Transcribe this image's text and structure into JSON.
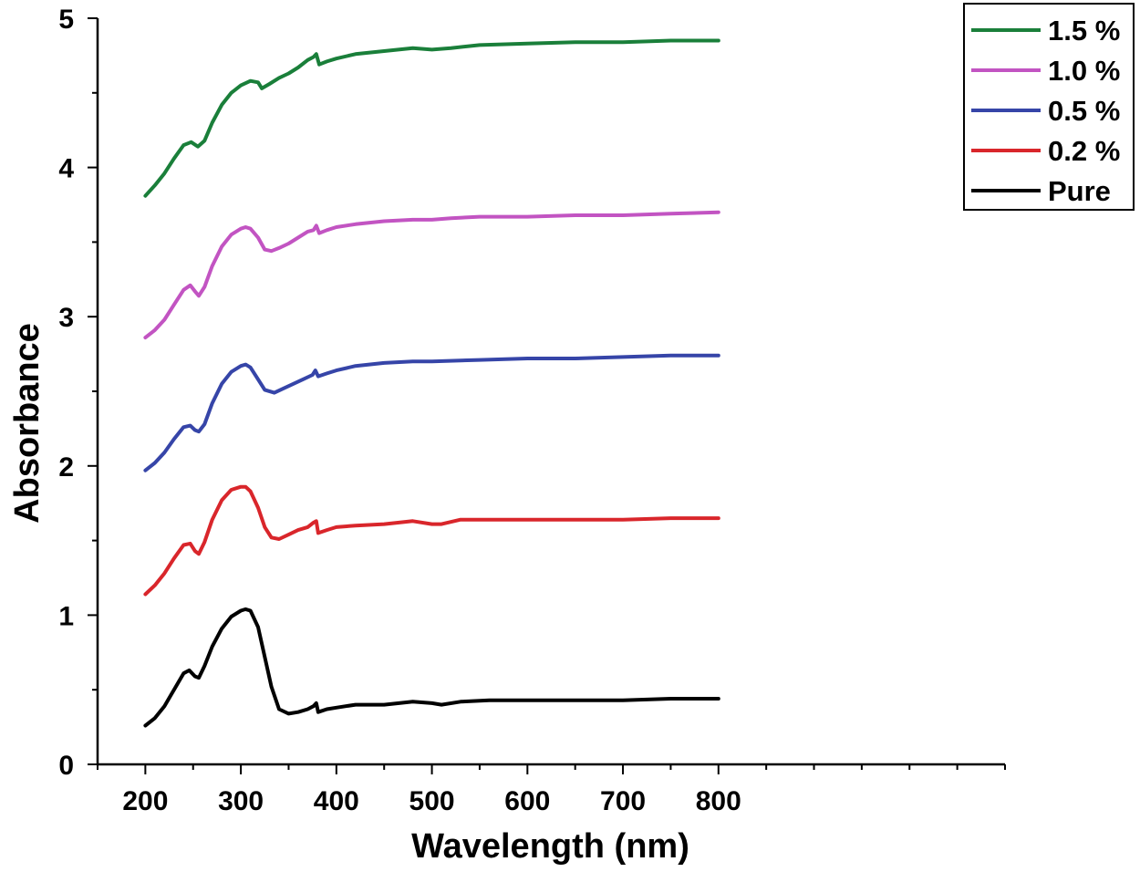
{
  "chart_data": {
    "type": "line",
    "title": "",
    "xlabel": "Wavelength (nm)",
    "ylabel": "Absorbance",
    "xlim": [
      150,
      1100
    ],
    "ylim": [
      0,
      5
    ],
    "xticks": [
      200,
      300,
      400,
      500,
      600,
      700,
      800
    ],
    "yticks": [
      0,
      1,
      2,
      3,
      4,
      5
    ],
    "xtick_labels": [
      "200",
      "300",
      "400",
      "500",
      "600",
      "700",
      "800"
    ],
    "ytick_labels": [
      "0",
      "1",
      "2",
      "3",
      "4",
      "5"
    ],
    "grid": false,
    "legend_position": "top-right",
    "series": [
      {
        "name": "1.5 %",
        "color": "#1a7f3a",
        "x": [
          200,
          210,
          220,
          230,
          240,
          248,
          255,
          262,
          270,
          280,
          290,
          300,
          310,
          318,
          322,
          330,
          340,
          350,
          360,
          370,
          376,
          379,
          382,
          390,
          400,
          420,
          450,
          480,
          500,
          520,
          550,
          600,
          650,
          700,
          750,
          800
        ],
        "y": [
          3.81,
          3.88,
          3.96,
          4.06,
          4.15,
          4.17,
          4.14,
          4.18,
          4.3,
          4.42,
          4.5,
          4.55,
          4.58,
          4.57,
          4.53,
          4.56,
          4.6,
          4.63,
          4.67,
          4.72,
          4.74,
          4.76,
          4.69,
          4.71,
          4.73,
          4.76,
          4.78,
          4.8,
          4.79,
          4.8,
          4.82,
          4.83,
          4.84,
          4.84,
          4.85,
          4.85
        ]
      },
      {
        "name": "1.0 %",
        "color": "#c254c2",
        "x": [
          200,
          210,
          220,
          230,
          240,
          247,
          252,
          256,
          262,
          270,
          280,
          290,
          300,
          305,
          310,
          318,
          325,
          332,
          340,
          350,
          360,
          370,
          376,
          379,
          382,
          390,
          400,
          420,
          450,
          480,
          500,
          520,
          550,
          600,
          650,
          700,
          750,
          800
        ],
        "y": [
          2.86,
          2.91,
          2.98,
          3.08,
          3.18,
          3.21,
          3.17,
          3.14,
          3.2,
          3.34,
          3.47,
          3.55,
          3.59,
          3.6,
          3.59,
          3.53,
          3.45,
          3.44,
          3.46,
          3.49,
          3.53,
          3.57,
          3.58,
          3.61,
          3.56,
          3.58,
          3.6,
          3.62,
          3.64,
          3.65,
          3.65,
          3.66,
          3.67,
          3.67,
          3.68,
          3.68,
          3.69,
          3.7
        ]
      },
      {
        "name": "0.5 %",
        "color": "#3645a8",
        "x": [
          200,
          210,
          220,
          230,
          240,
          247,
          252,
          256,
          262,
          270,
          280,
          290,
          300,
          305,
          310,
          318,
          325,
          335,
          345,
          355,
          365,
          375,
          378,
          381,
          390,
          400,
          420,
          450,
          480,
          500,
          550,
          600,
          650,
          700,
          750,
          800
        ],
        "y": [
          1.97,
          2.02,
          2.09,
          2.18,
          2.26,
          2.27,
          2.24,
          2.23,
          2.28,
          2.42,
          2.55,
          2.63,
          2.67,
          2.68,
          2.66,
          2.58,
          2.51,
          2.49,
          2.52,
          2.55,
          2.58,
          2.61,
          2.64,
          2.6,
          2.62,
          2.64,
          2.67,
          2.69,
          2.7,
          2.7,
          2.71,
          2.72,
          2.72,
          2.73,
          2.74,
          2.74
        ]
      },
      {
        "name": "0.2 %",
        "color": "#d9262b",
        "x": [
          200,
          210,
          220,
          230,
          240,
          247,
          252,
          256,
          262,
          270,
          280,
          290,
          300,
          305,
          310,
          318,
          325,
          332,
          340,
          350,
          360,
          370,
          376,
          379,
          381,
          390,
          400,
          420,
          450,
          480,
          500,
          510,
          530,
          560,
          600,
          650,
          700,
          750,
          800
        ],
        "y": [
          1.14,
          1.2,
          1.28,
          1.38,
          1.47,
          1.48,
          1.43,
          1.41,
          1.49,
          1.64,
          1.77,
          1.84,
          1.86,
          1.86,
          1.83,
          1.72,
          1.59,
          1.52,
          1.51,
          1.54,
          1.57,
          1.59,
          1.62,
          1.63,
          1.55,
          1.57,
          1.59,
          1.6,
          1.61,
          1.63,
          1.61,
          1.61,
          1.64,
          1.64,
          1.64,
          1.64,
          1.64,
          1.65,
          1.65
        ]
      },
      {
        "name": "Pure",
        "color": "#000000",
        "x": [
          200,
          210,
          220,
          230,
          240,
          246,
          252,
          256,
          262,
          270,
          280,
          290,
          300,
          305,
          310,
          318,
          325,
          332,
          340,
          350,
          360,
          370,
          376,
          379,
          381,
          390,
          400,
          420,
          450,
          480,
          500,
          510,
          530,
          560,
          600,
          650,
          700,
          750,
          800
        ],
        "y": [
          0.26,
          0.31,
          0.39,
          0.5,
          0.61,
          0.63,
          0.59,
          0.58,
          0.66,
          0.79,
          0.91,
          0.99,
          1.03,
          1.04,
          1.03,
          0.92,
          0.72,
          0.52,
          0.37,
          0.34,
          0.35,
          0.37,
          0.39,
          0.41,
          0.35,
          0.37,
          0.38,
          0.4,
          0.4,
          0.42,
          0.41,
          0.4,
          0.42,
          0.43,
          0.43,
          0.43,
          0.43,
          0.44,
          0.44
        ]
      }
    ]
  }
}
